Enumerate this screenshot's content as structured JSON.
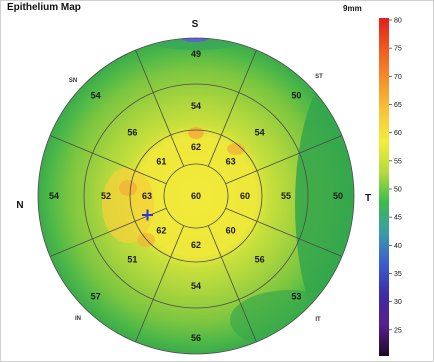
{
  "map": {
    "title": "Epithelium Map",
    "scale_label": "9mm",
    "orientation": {
      "superior": "S",
      "nasal": "N",
      "temporal": "T",
      "superonasal": "SN",
      "superotemporal": "ST",
      "inferonasal": "IN",
      "inferotemporal": "IT"
    },
    "center_value": "60",
    "sectors": {
      "inner": [
        {
          "angle": 90,
          "value": "62"
        },
        {
          "angle": 45,
          "value": "63"
        },
        {
          "angle": 0,
          "value": "60"
        },
        {
          "angle": -45,
          "value": "60"
        },
        {
          "angle": -90,
          "value": "62"
        },
        {
          "angle": -135,
          "value": "62"
        },
        {
          "angle": 180,
          "value": "63"
        },
        {
          "angle": 135,
          "value": "61"
        }
      ],
      "middle": [
        {
          "angle": 90,
          "value": "54"
        },
        {
          "angle": 45,
          "value": "54"
        },
        {
          "angle": 0,
          "value": "55"
        },
        {
          "angle": -45,
          "value": "56"
        },
        {
          "angle": -90,
          "value": "54"
        },
        {
          "angle": -135,
          "value": "51"
        },
        {
          "angle": 180,
          "value": "52"
        },
        {
          "angle": 135,
          "value": "56"
        }
      ],
      "outer": [
        {
          "angle": 90,
          "value": "49"
        },
        {
          "angle": 45,
          "value": "50"
        },
        {
          "angle": 0,
          "value": "50"
        },
        {
          "angle": -45,
          "value": "53"
        },
        {
          "angle": -90,
          "value": "56"
        },
        {
          "angle": -135,
          "value": "57"
        },
        {
          "angle": 180,
          "value": "54"
        },
        {
          "angle": 135,
          "value": "54"
        }
      ]
    },
    "marker_icon": "plus-cross-icon"
  },
  "colorbar": {
    "ticks": [
      "80",
      "75",
      "70",
      "65",
      "60",
      "55",
      "50",
      "45",
      "40",
      "35",
      "30",
      "25"
    ],
    "colors": [
      "#e0201c",
      "#f05a1e",
      "#f4902a",
      "#f8c23a",
      "#f6ec3c",
      "#b4dc3c",
      "#3cbc4c",
      "#3c9ca8",
      "#3c5cd0",
      "#3c2ca8",
      "#5a1e8c",
      "#1a0a28"
    ]
  }
}
